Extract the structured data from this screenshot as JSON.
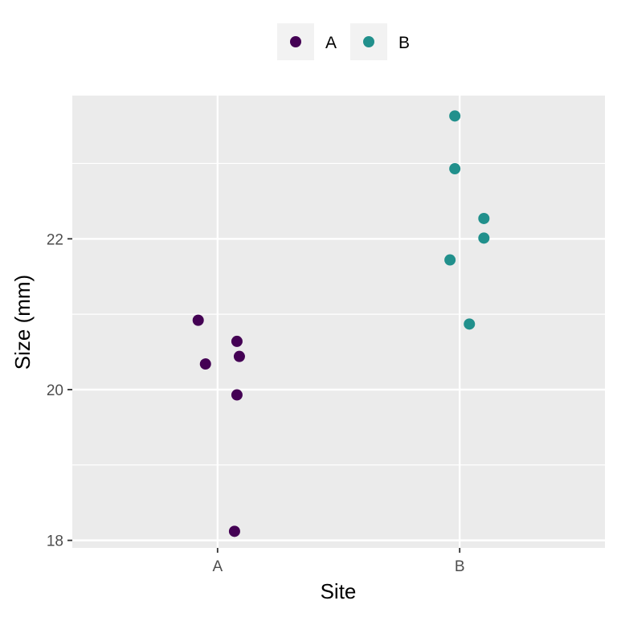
{
  "chart_data": {
    "type": "scatter",
    "xlabel": "Site",
    "ylabel": "Size (mm)",
    "categories": [
      "A",
      "B"
    ],
    "ylim": [
      17.9,
      23.9
    ],
    "yticks": [
      18,
      20,
      22
    ],
    "ytick_labels": [
      "18",
      "20",
      "22"
    ],
    "grid": true,
    "legend_position": "top",
    "series": [
      {
        "name": "A",
        "color": "#440154",
        "points": [
          {
            "x": "A",
            "jitter": -0.08,
            "y": 20.92
          },
          {
            "x": "A",
            "jitter": 0.08,
            "y": 20.64
          },
          {
            "x": "A",
            "jitter": 0.09,
            "y": 20.44
          },
          {
            "x": "A",
            "jitter": -0.05,
            "y": 20.34
          },
          {
            "x": "A",
            "jitter": 0.08,
            "y": 19.93
          },
          {
            "x": "A",
            "jitter": 0.07,
            "y": 18.12
          }
        ]
      },
      {
        "name": "B",
        "color": "#21908C",
        "points": [
          {
            "x": "B",
            "jitter": -0.02,
            "y": 23.63
          },
          {
            "x": "B",
            "jitter": -0.02,
            "y": 22.93
          },
          {
            "x": "B",
            "jitter": 0.1,
            "y": 22.27
          },
          {
            "x": "B",
            "jitter": 0.1,
            "y": 22.01
          },
          {
            "x": "B",
            "jitter": -0.04,
            "y": 21.72
          },
          {
            "x": "B",
            "jitter": 0.04,
            "y": 20.87
          }
        ]
      }
    ]
  }
}
